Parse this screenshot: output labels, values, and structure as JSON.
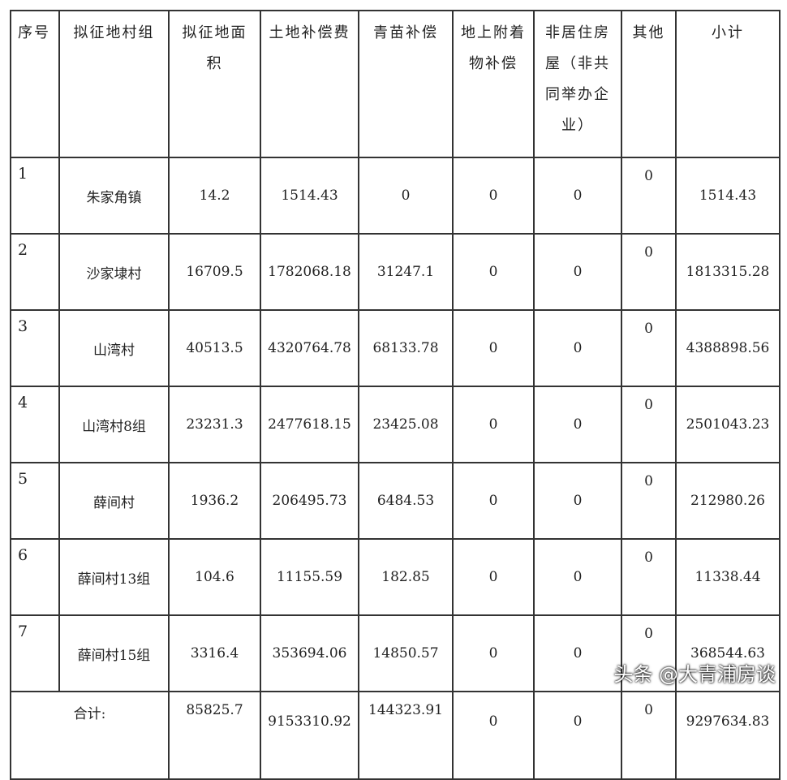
{
  "table": {
    "header": [
      "序号",
      "拟征地村组",
      "拟征地面积",
      "土地补偿费",
      "青苗补偿",
      "地上附着物补偿",
      "非居住房屋（非共同举办企业）",
      "其他",
      "小计"
    ],
    "rows": [
      [
        "1",
        "朱家角镇",
        "14.2",
        "1514.43",
        "0",
        "0",
        "0",
        "0",
        "1514.43"
      ],
      [
        "2",
        "沙家埭村",
        "16709.5",
        "1782068.18",
        "31247.1",
        "0",
        "0",
        "0",
        "1813315.28"
      ],
      [
        "3",
        "山湾村",
        "40513.5",
        "4320764.78",
        "68133.78",
        "0",
        "0",
        "0",
        "4388898.56"
      ],
      [
        "4",
        "山湾村8组",
        "23231.3",
        "2477618.15",
        "23425.08",
        "0",
        "0",
        "0",
        "2501043.23"
      ],
      [
        "5",
        "薛间村",
        "1936.2",
        "206495.73",
        "6484.53",
        "0",
        "0",
        "0",
        "212980.26"
      ],
      [
        "6",
        "薛间村13组",
        "104.6",
        "11155.59",
        "182.85",
        "0",
        "0",
        "0",
        "11338.44"
      ],
      [
        "7",
        "薛间村15组",
        "3316.4",
        "353694.06",
        "14850.57",
        "0",
        "0",
        "0",
        "368544.63"
      ]
    ],
    "total": {
      "label": "合计:",
      "cells": [
        "85825.7",
        "9153310.92",
        "144323.91",
        "0",
        "0",
        "0",
        "9297634.83"
      ]
    }
  },
  "watermark": "头条 @大青浦房谈"
}
